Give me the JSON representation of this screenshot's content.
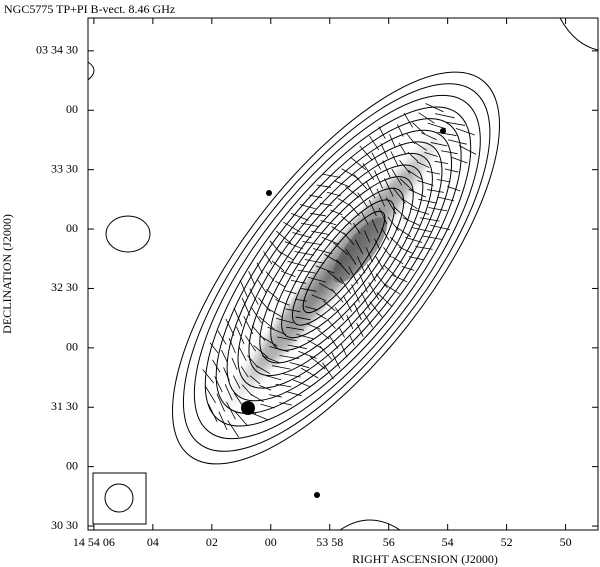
{
  "chart_data": {
    "type": "contour",
    "title": "NGC5775 TP+PI B-vect. 8.46 GHz",
    "x_label": "RIGHT ASCENSION (J2000)",
    "y_label": "DECLINATION (J2000)",
    "xlim": [
      53646.2,
      53628.9
    ],
    "xticks": [
      {
        "value": 53646,
        "label": "14 54 06"
      },
      {
        "value": 53644,
        "label": "04"
      },
      {
        "value": 53642,
        "label": "02"
      },
      {
        "value": 53640,
        "label": "00"
      },
      {
        "value": 53638,
        "label": "53 58"
      },
      {
        "value": 53636,
        "label": "56"
      },
      {
        "value": 53634,
        "label": "54"
      },
      {
        "value": 53632,
        "label": "52"
      },
      {
        "value": 53630,
        "label": "50"
      }
    ],
    "ylim": [
      1828,
      2086.6
    ],
    "yticks": [
      {
        "value": 2070,
        "label": "03 34 30"
      },
      {
        "value": 2040,
        "label": "00"
      },
      {
        "value": 2010,
        "label": "33 30"
      },
      {
        "value": 1980,
        "label": "00"
      },
      {
        "value": 1950,
        "label": "32 30"
      },
      {
        "value": 1920,
        "label": "00"
      },
      {
        "value": 1890,
        "label": "31 30"
      },
      {
        "value": 1860,
        "label": "00"
      },
      {
        "value": 1830,
        "label": "30 30"
      }
    ]
  }
}
